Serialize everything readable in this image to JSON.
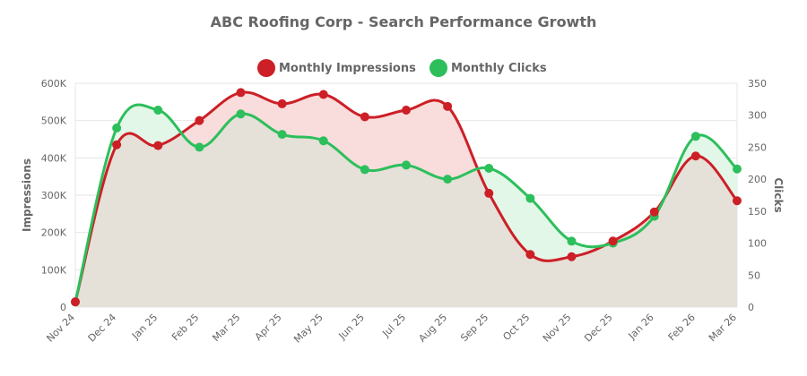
{
  "chart_data": {
    "type": "line",
    "title": "ABC Roofing Corp - Search Performance Growth",
    "categories": [
      "Nov 24",
      "Dec 24",
      "Jan 25",
      "Feb 25",
      "Mar 25",
      "Apr 25",
      "May 25",
      "Jun 25",
      "Jul 25",
      "Aug 25",
      "Sep 25",
      "Oct 25",
      "Nov 25",
      "Dec 25",
      "Jan 26",
      "Feb 26",
      "Mar 26"
    ],
    "series": [
      {
        "name": "Monthly Impressions",
        "axis": "left",
        "color": "#cc1f26",
        "fill": "#f9dcdc",
        "values": [
          14000,
          435000,
          433000,
          500000,
          575000,
          545000,
          570000,
          510000,
          528000,
          538000,
          305000,
          141000,
          135000,
          177000,
          255000,
          405000,
          285000
        ]
      },
      {
        "name": "Monthly Clicks",
        "axis": "right",
        "color": "#2dbf5c",
        "fill": "#e3f7e8",
        "values": [
          8,
          280,
          308,
          250,
          302,
          270,
          260,
          215,
          222,
          200,
          217,
          170,
          103,
          100,
          142,
          267,
          216
        ]
      }
    ],
    "y_left": {
      "label": "Impressions",
      "min": 0,
      "max": 600000,
      "ticks": [
        0,
        100000,
        200000,
        300000,
        400000,
        500000,
        600000
      ],
      "tick_labels": [
        "0",
        "100K",
        "200K",
        "300K",
        "400K",
        "500K",
        "600K"
      ]
    },
    "y_right": {
      "label": "Clicks",
      "min": 0,
      "max": 350,
      "ticks": [
        0,
        50,
        100,
        150,
        200,
        250,
        300,
        350
      ],
      "tick_labels": [
        "0",
        "50",
        "100",
        "150",
        "200",
        "250",
        "300",
        "350"
      ]
    },
    "overlap_fill": "#e5e0d8",
    "legend_position": "top-center",
    "grid": true
  }
}
